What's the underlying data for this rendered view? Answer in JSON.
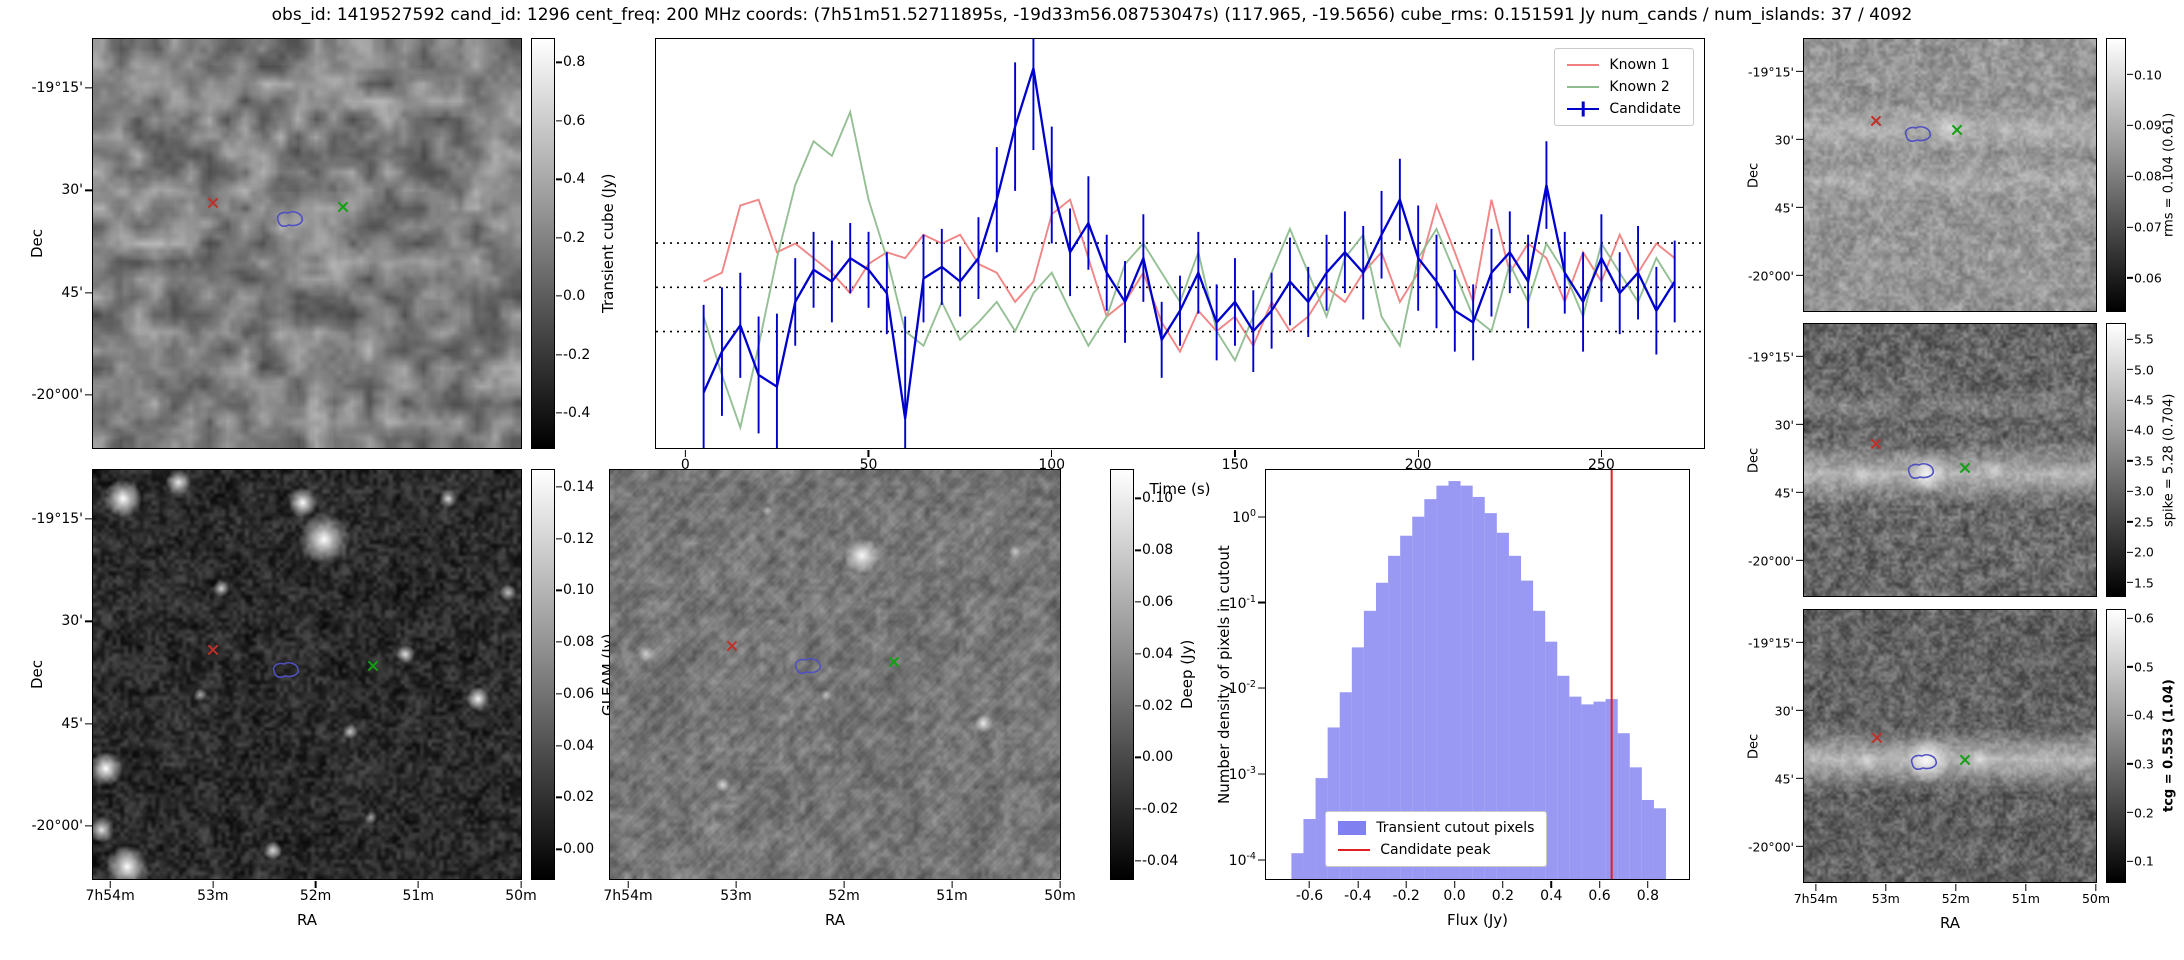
{
  "title": "obs_id: 1419527592 cand_id: 1296 cent_freq: 200 MHz coords: (7h51m51.52711895s, -19d33m56.08753047s) (117.965, -19.5656) cube_rms: 0.151591 Jy num_cands / num_islands: 37 / 4092",
  "colors": {
    "known1": "#f08080",
    "known2": "#8fbc8f",
    "candidate": "#0000cd",
    "hist_fill": "#8080f0",
    "peak_line": "#e02020",
    "marker_red": "#c03028",
    "marker_green": "#10a010",
    "contour": "#5050c0"
  },
  "axes": {
    "dec_label": "Dec",
    "ra_label": "RA",
    "dec_ticks": {
      "labels": [
        "-19°15'",
        "30'",
        "45'",
        "-20°00'"
      ],
      "positions": [
        0.12,
        0.37,
        0.62,
        0.87
      ]
    },
    "ra_ticks": {
      "labels": [
        "7h54m",
        "53m",
        "52m",
        "51m",
        "50m"
      ],
      "positions": [
        0.04,
        0.28,
        0.52,
        0.76,
        1.0
      ]
    }
  },
  "panels": {
    "transient_cube": {
      "colorbar": {
        "label": "Transient cube (Jy)",
        "ticks": [
          "0.8",
          "0.6",
          "0.4",
          "0.2",
          "0.0",
          "-0.2",
          "-0.4"
        ],
        "vmin": -0.52,
        "vmax": 0.88
      },
      "markers": {
        "red": [
          0.28,
          0.4
        ],
        "green": [
          0.585,
          0.41
        ],
        "contour": [
          0.46,
          0.44
        ]
      },
      "image": {
        "seed": 3,
        "layers": [
          {
            "grid": 24,
            "base": 128,
            "spread": 72,
            "alpha": 1
          },
          {
            "grid": 60,
            "base": 128,
            "spread": 40,
            "alpha": 0.35
          }
        ]
      }
    },
    "gleam": {
      "colorbar": {
        "label": "GLEAM (Jy)",
        "ticks": [
          "0.14",
          "0.12",
          "0.10",
          "0.08",
          "0.06",
          "0.04",
          "0.02",
          "0.00"
        ],
        "vmin": -0.0115,
        "vmax": 0.1465
      },
      "markers": {
        "red": [
          0.28,
          0.44
        ],
        "green": [
          0.655,
          0.48
        ],
        "contour": [
          0.45,
          0.49
        ]
      },
      "image": {
        "seed": 7,
        "layers": [
          {
            "grid": 40,
            "base": 42,
            "spread": 30,
            "alpha": 1
          },
          {
            "grid": 110,
            "base": 45,
            "spread": 55,
            "alpha": 0.5
          }
        ],
        "blobs": [
          [
            0.07,
            0.07,
            0.045,
            1
          ],
          [
            0.2,
            0.03,
            0.03,
            0.9
          ],
          [
            0.54,
            0.17,
            0.06,
            1
          ],
          [
            0.49,
            0.08,
            0.035,
            1
          ],
          [
            0.3,
            0.29,
            0.02,
            0.8
          ],
          [
            0.83,
            0.07,
            0.022,
            0.8
          ],
          [
            0.73,
            0.45,
            0.022,
            0.85
          ],
          [
            0.9,
            0.56,
            0.028,
            0.95
          ],
          [
            0.03,
            0.73,
            0.04,
            1
          ],
          [
            0.02,
            0.88,
            0.03,
            0.9
          ],
          [
            0.08,
            0.97,
            0.05,
            1
          ],
          [
            0.42,
            0.93,
            0.022,
            0.8
          ],
          [
            0.6,
            0.64,
            0.018,
            0.7
          ],
          [
            0.97,
            0.3,
            0.02,
            0.7
          ],
          [
            0.25,
            0.55,
            0.015,
            0.6
          ],
          [
            0.65,
            0.85,
            0.015,
            0.6
          ]
        ]
      }
    },
    "deep": {
      "colorbar": {
        "label": "Deep (Jy)",
        "ticks": [
          "0.10",
          "0.08",
          "0.06",
          "0.04",
          "0.02",
          "0.00",
          "-0.02",
          "-0.04"
        ],
        "vmin": -0.047,
        "vmax": 0.111
      },
      "markers": {
        "red": [
          0.27,
          0.43
        ],
        "green": [
          0.63,
          0.47
        ],
        "contour": [
          0.44,
          0.48
        ]
      },
      "image": {
        "seed": 12,
        "layers": [
          {
            "grid": 46,
            "base": 120,
            "spread": 34,
            "alpha": 1
          },
          {
            "grid": 120,
            "base": 120,
            "spread": 40,
            "alpha": 0.4
          }
        ],
        "stripes": {
          "spacing": 9,
          "alpha": 0.055
        },
        "blobs": [
          [
            0.56,
            0.21,
            0.04,
            0.95
          ],
          [
            0.83,
            0.62,
            0.02,
            0.85
          ],
          [
            0.25,
            0.77,
            0.016,
            0.7
          ],
          [
            0.08,
            0.45,
            0.018,
            0.6
          ],
          [
            0.48,
            0.55,
            0.012,
            0.5
          ],
          [
            0.9,
            0.2,
            0.014,
            0.55
          ],
          [
            0.35,
            0.1,
            0.012,
            0.5
          ]
        ]
      }
    },
    "rms": {
      "colorbar": {
        "label": "rms = 0.104 (0.61)",
        "ticks": [
          "0.10",
          "0.09",
          "0.08",
          "0.07",
          "0.06"
        ],
        "vmin": 0.0535,
        "vmax": 0.107
      },
      "markers": {
        "red": [
          0.245,
          0.3
        ],
        "green": [
          0.525,
          0.335
        ],
        "contour": [
          0.39,
          0.35
        ]
      },
      "image": {
        "seed": 21,
        "layers": [
          {
            "grid": 40,
            "base": 150,
            "spread": 36,
            "alpha": 1
          },
          {
            "grid": 100,
            "base": 150,
            "spread": 46,
            "alpha": 0.45
          }
        ],
        "bands": [
          {
            "y": 0.33,
            "h": 0.045,
            "a": 0.28
          },
          {
            "y": 0.52,
            "h": 0.04,
            "a": 0.18
          }
        ],
        "blobs": [
          [
            0.5,
            0.33,
            0.05,
            0.5
          ]
        ]
      }
    },
    "spike": {
      "colorbar": {
        "label": "spike = 5.28 (0.704)",
        "ticks": [
          "5.5",
          "5.0",
          "4.5",
          "4.0",
          "3.5",
          "3.0",
          "2.5",
          "2.0",
          "1.5"
        ],
        "vmin": 1.28,
        "vmax": 5.75
      },
      "markers": {
        "red": [
          0.245,
          0.44
        ],
        "green": [
          0.55,
          0.53
        ],
        "contour": [
          0.4,
          0.54
        ]
      },
      "image": {
        "seed": 22,
        "layers": [
          {
            "grid": 46,
            "base": 105,
            "spread": 48,
            "alpha": 1
          },
          {
            "grid": 110,
            "base": 105,
            "spread": 55,
            "alpha": 0.5
          }
        ],
        "bands": [
          {
            "y": 0.55,
            "h": 0.06,
            "a": 0.5
          },
          {
            "y": 0.3,
            "h": 0.03,
            "a": 0.15
          }
        ],
        "blobs": [
          [
            0.42,
            0.55,
            0.07,
            0.85
          ],
          [
            0.2,
            0.56,
            0.04,
            0.5
          ],
          [
            0.65,
            0.54,
            0.035,
            0.45
          ]
        ]
      }
    },
    "tcg": {
      "colorbar": {
        "label": "tcg = 0.553 (1.04)",
        "ticks": [
          "0.6",
          "0.5",
          "0.4",
          "0.3",
          "0.2",
          "0.1"
        ],
        "vmin": 0.057,
        "vmax": 0.617
      },
      "markers": {
        "red": [
          0.25,
          0.47
        ],
        "green": [
          0.55,
          0.55
        ],
        "contour": [
          0.41,
          0.56
        ]
      },
      "image": {
        "seed": 23,
        "layers": [
          {
            "grid": 46,
            "base": 98,
            "spread": 45,
            "alpha": 1
          },
          {
            "grid": 110,
            "base": 100,
            "spread": 52,
            "alpha": 0.5
          }
        ],
        "bands": [
          {
            "y": 0.55,
            "h": 0.06,
            "a": 0.55
          }
        ],
        "blobs": [
          [
            0.42,
            0.55,
            0.08,
            0.95
          ],
          [
            0.6,
            0.55,
            0.04,
            0.5
          ],
          [
            0.22,
            0.56,
            0.035,
            0.45
          ]
        ]
      }
    }
  },
  "chart_data": [
    {
      "type": "line",
      "id": "lightcurve",
      "xlabel": "Time (s)",
      "ylabel": "Transient cube (Jy)",
      "xlim": [
        -8,
        278
      ],
      "ylim": [
        -0.55,
        0.85
      ],
      "xticks": [
        0,
        50,
        100,
        150,
        200,
        250
      ],
      "hlines": [
        0.151591,
        0,
        -0.151591
      ],
      "legend_position": "upper right",
      "x": [
        5,
        10,
        15,
        20,
        25,
        30,
        35,
        40,
        45,
        50,
        55,
        60,
        65,
        70,
        75,
        80,
        85,
        90,
        95,
        100,
        105,
        110,
        115,
        120,
        125,
        130,
        135,
        140,
        145,
        150,
        155,
        160,
        165,
        170,
        175,
        180,
        185,
        190,
        195,
        200,
        205,
        210,
        215,
        220,
        225,
        230,
        235,
        240,
        245,
        250,
        255,
        260,
        265,
        270
      ],
      "series": [
        {
          "name": "Known 1",
          "color": "#f08080",
          "values": [
            0.02,
            0.05,
            0.28,
            0.3,
            0.12,
            0.15,
            0.1,
            0.05,
            -0.02,
            0.08,
            0.12,
            0.1,
            0.18,
            0.15,
            0.18,
            0.08,
            0.05,
            -0.05,
            0.02,
            0.25,
            0.3,
            0.1,
            -0.1,
            -0.05,
            0.05,
            -0.12,
            -0.22,
            -0.08,
            -0.15,
            -0.1,
            -0.2,
            -0.05,
            -0.15,
            -0.1,
            0.0,
            -0.05,
            0.05,
            0.12,
            -0.05,
            0.05,
            0.28,
            0.12,
            -0.05,
            0.3,
            0.05,
            0.15,
            0.1,
            -0.05,
            0.12,
            0.02,
            0.18,
            0.05,
            0.15,
            0.1
          ]
        },
        {
          "name": "Known 2",
          "color": "#8fbc8f",
          "values": [
            -0.1,
            -0.3,
            -0.48,
            -0.2,
            0.1,
            0.35,
            0.5,
            0.45,
            0.6,
            0.3,
            0.1,
            -0.15,
            -0.2,
            -0.05,
            -0.18,
            -0.12,
            -0.05,
            -0.15,
            -0.02,
            0.05,
            -0.08,
            -0.2,
            -0.1,
            0.08,
            0.15,
            0.05,
            -0.05,
            0.12,
            -0.15,
            -0.25,
            -0.1,
            0.05,
            0.2,
            0.05,
            -0.1,
            0.1,
            0.18,
            -0.1,
            -0.2,
            0.1,
            0.2,
            0.05,
            -0.1,
            -0.15,
            0.08,
            -0.05,
            0.15,
            0.05,
            -0.1,
            0.15,
            0.05,
            -0.05,
            0.1,
            0.0
          ]
        },
        {
          "name": "Candidate",
          "color": "#0000cd",
          "values": [
            -0.36,
            -0.22,
            -0.13,
            -0.3,
            -0.34,
            -0.05,
            0.06,
            0.02,
            0.1,
            0.06,
            -0.02,
            -0.45,
            0.03,
            0.07,
            0.02,
            0.1,
            0.3,
            0.55,
            0.75,
            0.35,
            0.12,
            0.22,
            0.05,
            -0.05,
            0.1,
            -0.18,
            -0.08,
            0.05,
            -0.12,
            -0.05,
            -0.15,
            -0.08,
            0.02,
            -0.05,
            0.05,
            0.12,
            0.05,
            0.18,
            0.3,
            0.1,
            0.02,
            -0.08,
            -0.12,
            0.05,
            0.12,
            0.02,
            0.35,
            0.05,
            -0.05,
            0.1,
            -0.02,
            0.05,
            -0.08,
            0.02
          ],
          "errors": [
            0.3,
            0.22,
            0.18,
            0.2,
            0.25,
            0.15,
            0.13,
            0.14,
            0.12,
            0.13,
            0.14,
            0.35,
            0.15,
            0.13,
            0.12,
            0.14,
            0.18,
            0.22,
            0.28,
            0.2,
            0.15,
            0.16,
            0.13,
            0.14,
            0.15,
            0.13,
            0.12,
            0.14,
            0.13,
            0.15,
            0.14,
            0.13,
            0.15,
            0.12,
            0.13,
            0.14,
            0.16,
            0.15,
            0.14,
            0.18,
            0.16,
            0.14,
            0.13,
            0.15,
            0.14,
            0.16,
            0.15,
            0.14,
            0.17,
            0.15,
            0.14,
            0.16,
            0.15,
            0.14
          ]
        }
      ]
    },
    {
      "type": "bar",
      "id": "flux_histogram",
      "xlabel": "Flux (Jy)",
      "ylabel": "Number density of pixels in cutout",
      "yscale": "log",
      "xlim": [
        -0.78,
        0.97
      ],
      "ylim": [
        6e-05,
        3.5
      ],
      "xticks": [
        -0.6,
        -0.4,
        -0.2,
        0.0,
        0.2,
        0.4,
        0.6,
        0.8
      ],
      "yticks_exp": [
        0,
        -1,
        -2,
        -3,
        -4
      ],
      "bin_width": 0.05,
      "bin_centers": [
        -0.65,
        -0.6,
        -0.55,
        -0.5,
        -0.45,
        -0.4,
        -0.35,
        -0.3,
        -0.25,
        -0.2,
        -0.15,
        -0.1,
        -0.05,
        0.0,
        0.05,
        0.1,
        0.15,
        0.2,
        0.25,
        0.3,
        0.35,
        0.4,
        0.45,
        0.5,
        0.55,
        0.6,
        0.65,
        0.7,
        0.75,
        0.8,
        0.85
      ],
      "densities": [
        0.00012,
        0.0003,
        0.0009,
        0.0035,
        0.009,
        0.03,
        0.08,
        0.17,
        0.35,
        0.6,
        1.0,
        1.6,
        2.3,
        2.6,
        2.3,
        1.7,
        1.1,
        0.65,
        0.35,
        0.18,
        0.08,
        0.035,
        0.014,
        0.008,
        0.0065,
        0.007,
        0.0075,
        0.003,
        0.0012,
        0.0005,
        0.0004
      ],
      "vline": 0.65,
      "legend": [
        "Transient cutout pixels",
        "Candidate peak"
      ]
    }
  ]
}
